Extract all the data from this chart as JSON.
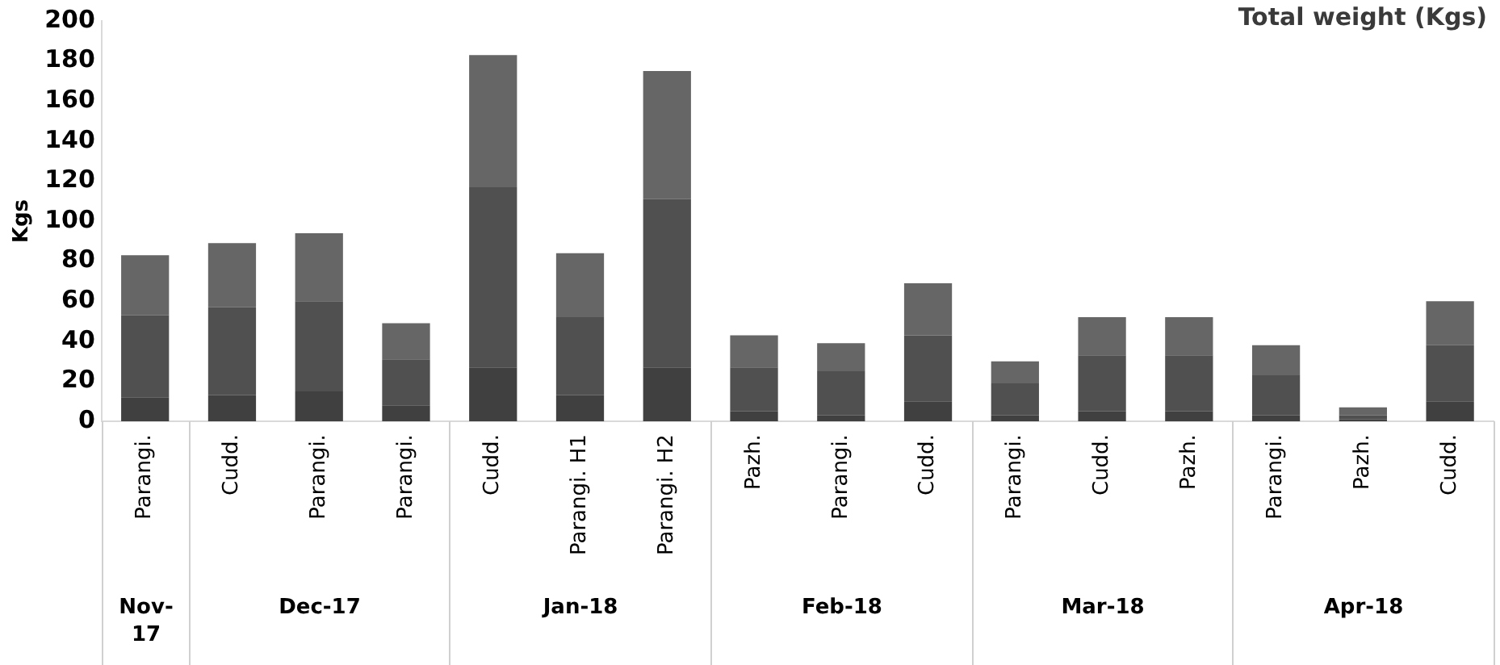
{
  "chart_data": {
    "type": "bar",
    "stacked": true,
    "title": "Total weight (Kgs)",
    "ylabel": "Kgs",
    "categories": [
      "Parangi.",
      "Cudd.",
      "Parangi.",
      "Parangi.",
      "Cudd.",
      "Parangi. H1",
      "Parangi. H2",
      "Pazh.",
      "Parangi.",
      "Cudd.",
      "Parangi.",
      "Cudd.",
      "Pazh.",
      "Parangi.",
      "Pazh.",
      "Cudd."
    ],
    "series": [
      {
        "color": "#404040",
        "values": [
          12,
          13,
          15,
          8,
          27,
          13,
          27,
          5,
          3,
          10,
          3,
          5,
          5,
          3,
          1,
          10
        ]
      },
      {
        "color": "#505050",
        "values": [
          41,
          44,
          45,
          23,
          90,
          39,
          84,
          22,
          22,
          33,
          16,
          28,
          28,
          20,
          2,
          28
        ]
      },
      {
        "color": "#666666",
        "values": [
          30,
          32,
          34,
          18,
          66,
          32,
          64,
          16,
          14,
          26,
          11,
          19,
          19,
          15,
          4,
          22
        ]
      }
    ],
    "annotations": [
      "Nov-17",
      "Dec-17",
      "Jan-18",
      "Feb-18",
      "Mar-18",
      "Apr-18"
    ],
    "ylim": [
      0,
      200
    ],
    "yticks": [
      0,
      20,
      40,
      60,
      80,
      100,
      120,
      140,
      160,
      180,
      200
    ],
    "grid": false,
    "legend": false
  }
}
